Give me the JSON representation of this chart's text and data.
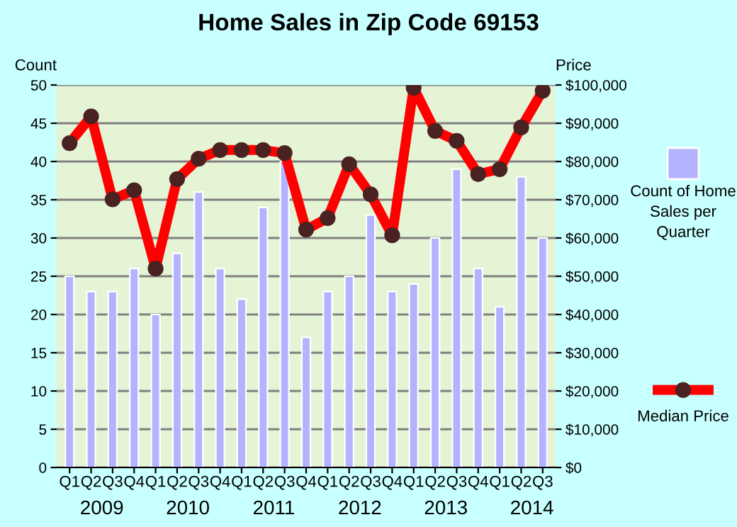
{
  "chart_data": {
    "type": "bar",
    "title": "Home Sales in Zip Code 69153",
    "categories": [
      "Q1",
      "Q2",
      "Q3",
      "Q4",
      "Q1",
      "Q2",
      "Q3",
      "Q4",
      "Q1",
      "Q2",
      "Q3",
      "Q4",
      "Q1",
      "Q2",
      "Q3",
      "Q4",
      "Q1",
      "Q2",
      "Q3",
      "Q4",
      "Q1",
      "Q2",
      "Q3"
    ],
    "annotations": [
      "2009",
      "2010",
      "2011",
      "2012",
      "2013",
      "2014"
    ],
    "ylabel": "Count",
    "y2label": "Price",
    "series": [
      {
        "name": "Count of Home Sales per Quarter",
        "color": "#b3b3ff",
        "values": [
          25,
          23,
          23,
          26,
          20,
          28,
          36,
          26,
          22,
          34,
          40,
          17,
          23,
          25,
          33,
          23,
          24,
          30,
          39,
          26,
          21,
          38,
          30
        ]
      },
      {
        "name": "Median Price",
        "type": "line",
        "axis": "y2",
        "color": "#ff0000",
        "marker": "circle",
        "values": [
          84800,
          91800,
          70100,
          72500,
          52000,
          75400,
          80700,
          83000,
          83000,
          83000,
          82200,
          62200,
          65200,
          79300,
          71400,
          60700,
          99300,
          88000,
          85400,
          76700,
          78000,
          88900,
          98500
        ]
      }
    ],
    "ylim": [
      0,
      50
    ],
    "yticks": [
      0,
      5,
      10,
      15,
      20,
      25,
      30,
      35,
      40,
      45,
      50
    ],
    "y2lim": [
      0,
      100000
    ],
    "y2ticks": [
      {
        "value": 0,
        "label": "$0"
      },
      {
        "value": 10000,
        "label": "$10,000"
      },
      {
        "value": 20000,
        "label": "$20,000"
      },
      {
        "value": 30000,
        "label": "$30,000"
      },
      {
        "value": 40000,
        "label": "$40,000"
      },
      {
        "value": 50000,
        "label": "$50,000"
      },
      {
        "value": 60000,
        "label": "$60,000"
      },
      {
        "value": 70000,
        "label": "$70,000"
      },
      {
        "value": 80000,
        "label": "$80,000"
      },
      {
        "value": 90000,
        "label": "$90,000"
      },
      {
        "value": 100000,
        "label": "$100,000"
      }
    ],
    "grid": "y",
    "legend": "right"
  }
}
